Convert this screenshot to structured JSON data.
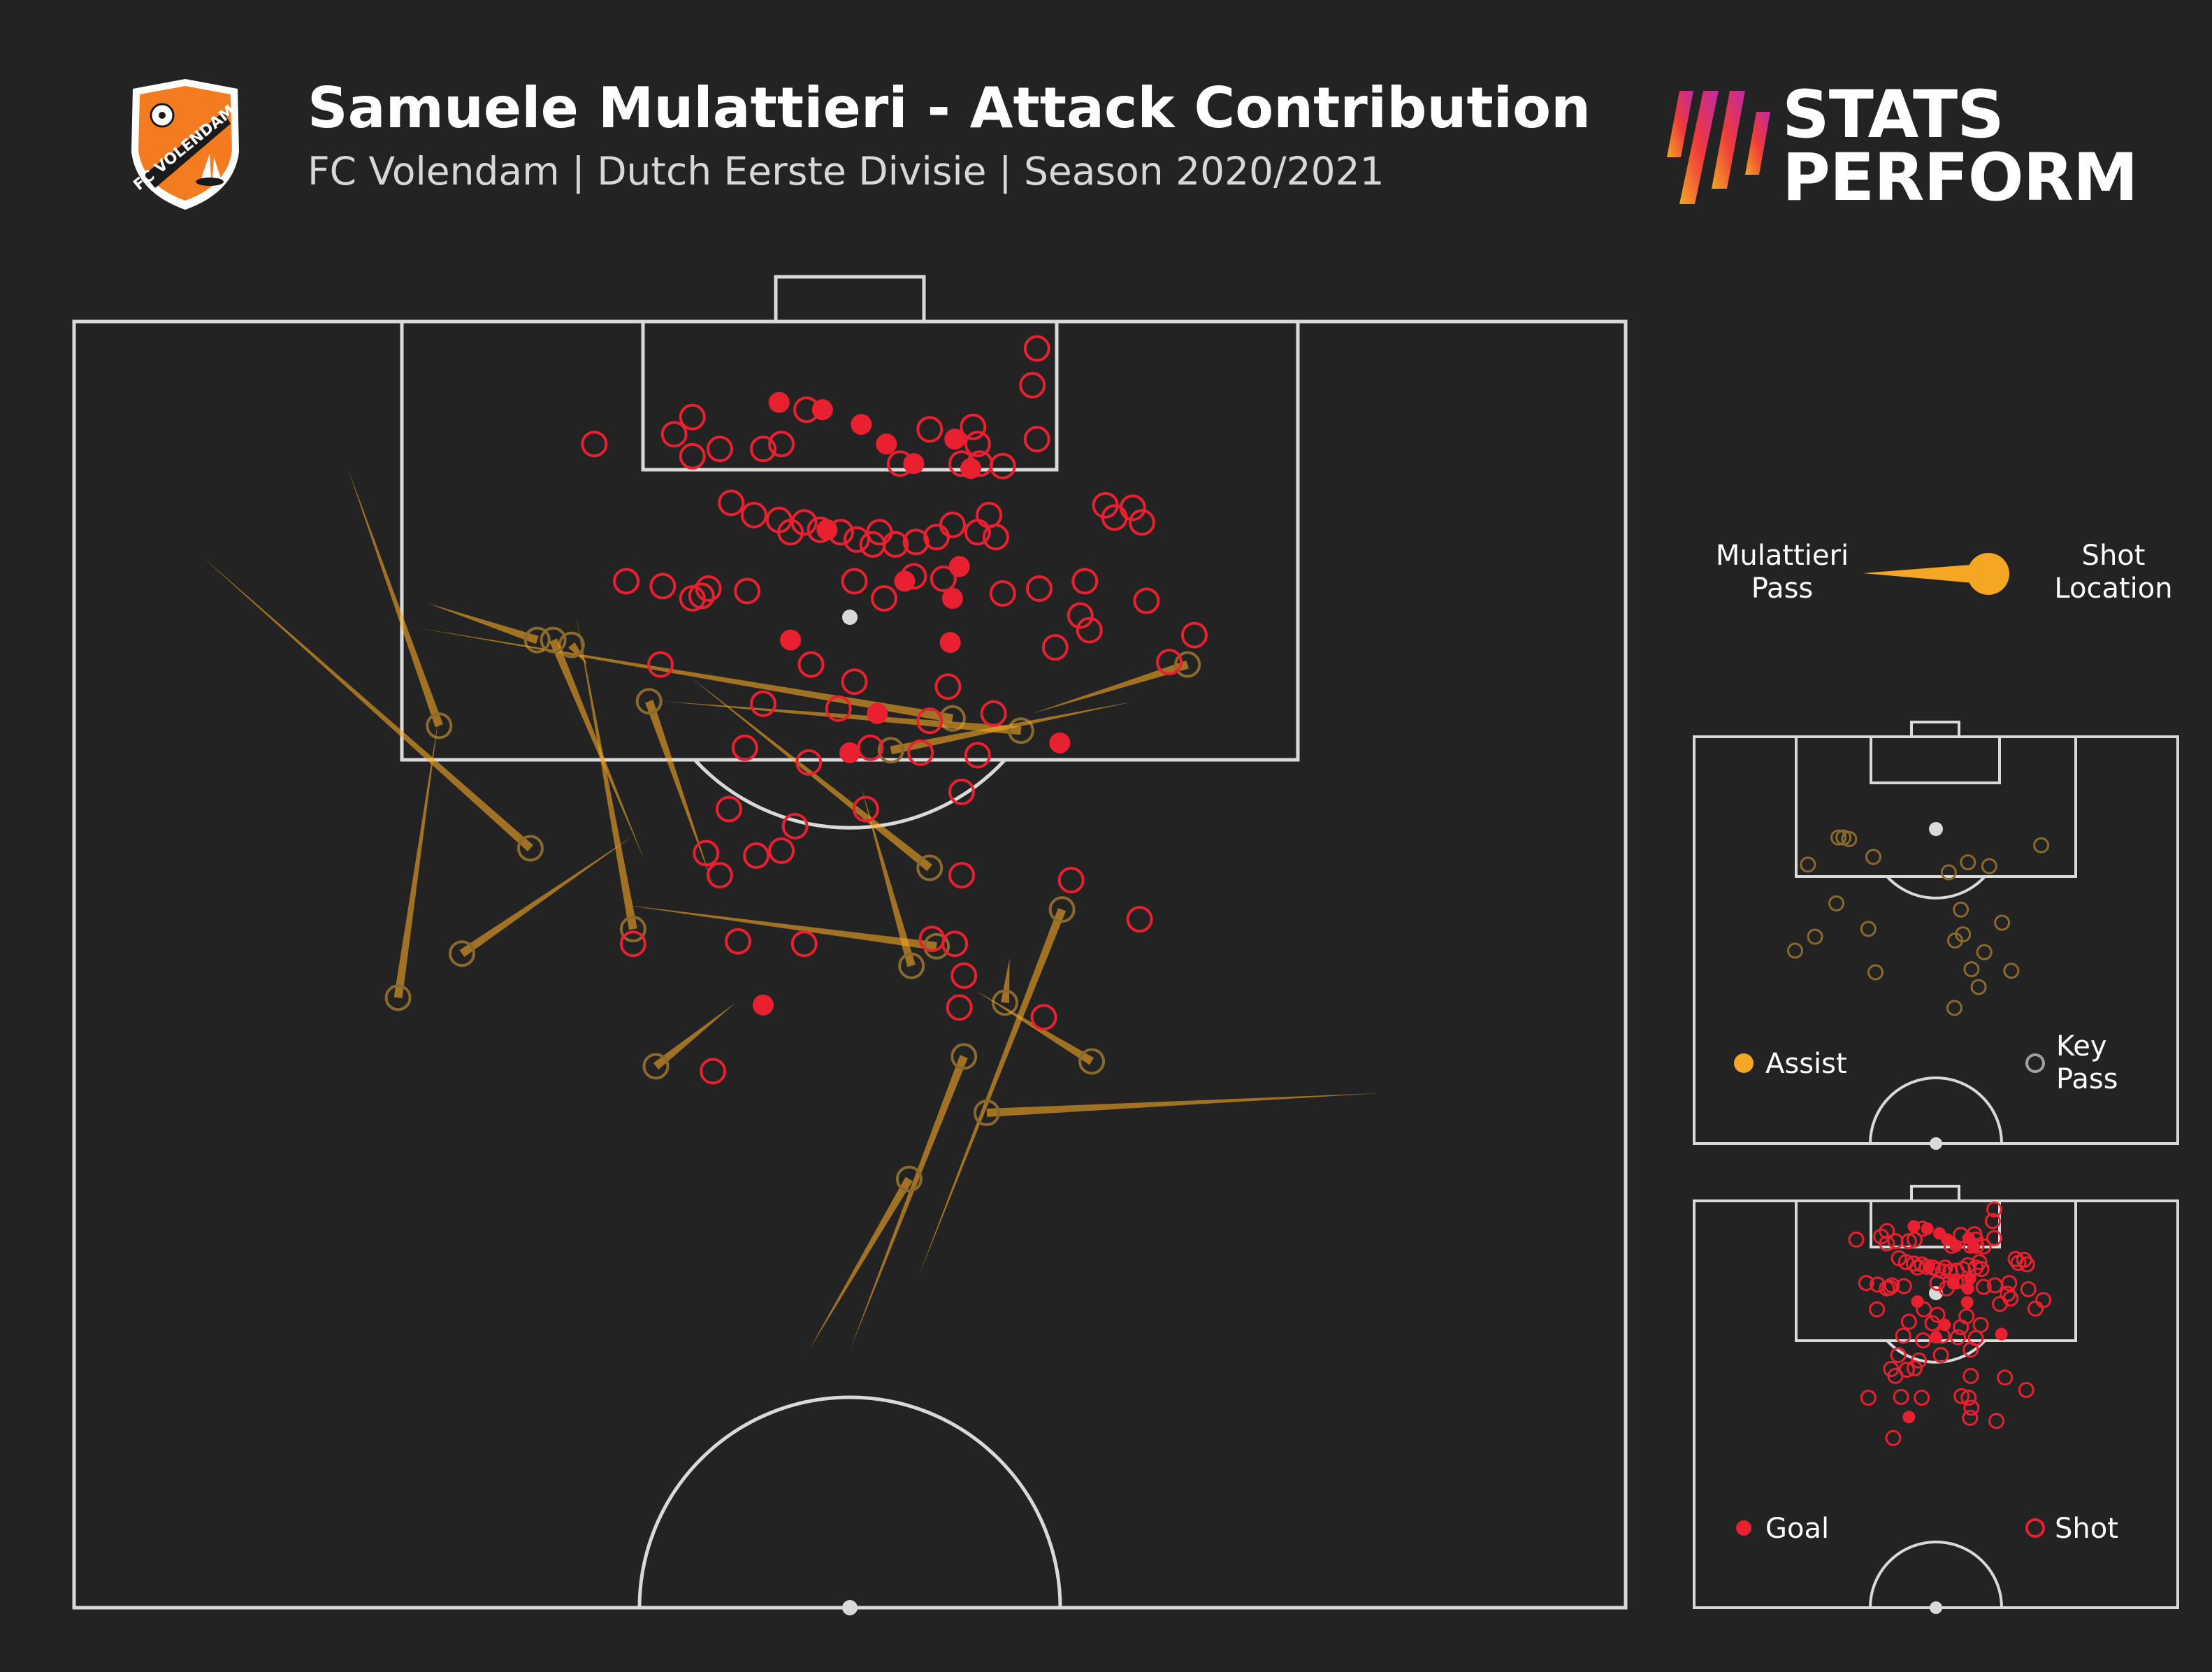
{
  "header": {
    "title": "Samuele Mulattieri - Attack Contribution",
    "subtitle": "FC Volendam | Dutch Eerste Divisie | Season 2020/2021",
    "crest_text": "FC VOLENDAM",
    "brand_line1": "STATS",
    "brand_line2": "PERFORM"
  },
  "legend": {
    "pass_label": [
      "Mulattieri",
      "Pass"
    ],
    "shot_label": [
      "Shot",
      "Location"
    ],
    "assist": "Assist",
    "key_pass": [
      "Key",
      "Pass"
    ],
    "goal": "Goal",
    "shot": "Shot"
  },
  "colors": {
    "background": "#232323",
    "pitch_lines": "#d9d9d9",
    "pass": "#f5a623",
    "goal": "#e8202f",
    "shot": "#e8202f",
    "key_pass": "#a0a0a0",
    "crest_orange": "#f47b20"
  },
  "chart_data": {
    "type": "scatter",
    "pitch_units": "x across pitch 0-68 (left to right), y distance from goal line",
    "main_pitch_y_range": [
      0,
      52.5
    ],
    "goals": [
      [
        30.9,
        3.3
      ],
      [
        32.8,
        3.6
      ],
      [
        34.5,
        4.2
      ],
      [
        35.6,
        5.0
      ],
      [
        36.8,
        5.8
      ],
      [
        38.6,
        4.8
      ],
      [
        39.3,
        6.0
      ],
      [
        33.0,
        8.5
      ],
      [
        36.4,
        10.6
      ],
      [
        38.5,
        11.3
      ],
      [
        38.8,
        10.0
      ],
      [
        31.4,
        13.0
      ],
      [
        38.4,
        13.1
      ],
      [
        35.2,
        16.0
      ],
      [
        34.0,
        17.6
      ],
      [
        43.2,
        17.2
      ],
      [
        30.2,
        27.9
      ]
    ],
    "shots": [
      [
        22.8,
        5.0
      ],
      [
        26.3,
        4.6
      ],
      [
        27.1,
        3.9
      ],
      [
        28.3,
        5.2
      ],
      [
        30.2,
        5.2
      ],
      [
        31.0,
        5.0
      ],
      [
        32.1,
        3.6
      ],
      [
        37.5,
        4.4
      ],
      [
        39.4,
        4.3
      ],
      [
        36.2,
        5.8
      ],
      [
        38.9,
        5.8
      ],
      [
        39.7,
        5.8
      ],
      [
        39.6,
        5.0
      ],
      [
        40.7,
        5.9
      ],
      [
        42.2,
        4.8
      ],
      [
        42.2,
        1.1
      ],
      [
        42.0,
        2.6
      ],
      [
        27.1,
        5.5
      ],
      [
        28.8,
        7.4
      ],
      [
        29.8,
        7.9
      ],
      [
        30.9,
        8.1
      ],
      [
        31.4,
        8.6
      ],
      [
        32.0,
        8.2
      ],
      [
        32.7,
        8.5
      ],
      [
        33.6,
        8.6
      ],
      [
        34.3,
        8.9
      ],
      [
        35.0,
        9.1
      ],
      [
        35.3,
        8.6
      ],
      [
        36.0,
        9.1
      ],
      [
        36.9,
        9.0
      ],
      [
        37.8,
        8.8
      ],
      [
        38.5,
        8.3
      ],
      [
        39.6,
        8.6
      ],
      [
        40.4,
        8.8
      ],
      [
        40.1,
        7.9
      ],
      [
        45.2,
        7.5
      ],
      [
        46.4,
        7.6
      ],
      [
        46.8,
        8.2
      ],
      [
        45.6,
        8.0
      ],
      [
        24.2,
        10.6
      ],
      [
        25.8,
        10.8
      ],
      [
        27.8,
        10.9
      ],
      [
        27.1,
        11.3
      ],
      [
        27.5,
        11.2
      ],
      [
        29.5,
        11.0
      ],
      [
        34.2,
        10.6
      ],
      [
        35.5,
        11.3
      ],
      [
        36.8,
        10.4
      ],
      [
        38.1,
        10.5
      ],
      [
        40.7,
        11.1
      ],
      [
        42.3,
        10.9
      ],
      [
        44.3,
        10.6
      ],
      [
        44.1,
        12.0
      ],
      [
        44.5,
        12.6
      ],
      [
        47.0,
        11.4
      ],
      [
        49.1,
        12.8
      ],
      [
        48.0,
        13.9
      ],
      [
        43.0,
        13.3
      ],
      [
        32.3,
        14.0
      ],
      [
        34.2,
        14.7
      ],
      [
        38.3,
        14.9
      ],
      [
        25.7,
        14.0
      ],
      [
        33.5,
        15.8
      ],
      [
        30.2,
        15.6
      ],
      [
        37.5,
        16.3
      ],
      [
        40.3,
        16.0
      ],
      [
        29.4,
        17.4
      ],
      [
        32.2,
        18.0
      ],
      [
        34.9,
        17.4
      ],
      [
        37.1,
        17.6
      ],
      [
        39.6,
        17.7
      ],
      [
        28.7,
        19.9
      ],
      [
        31.6,
        20.6
      ],
      [
        34.7,
        19.9
      ],
      [
        38.9,
        19.2
      ],
      [
        27.7,
        21.7
      ],
      [
        29.9,
        21.8
      ],
      [
        31.0,
        21.6
      ],
      [
        28.3,
        22.6
      ],
      [
        38.9,
        22.6
      ],
      [
        43.7,
        22.8
      ],
      [
        46.7,
        24.4
      ],
      [
        24.5,
        25.4
      ],
      [
        29.1,
        25.3
      ],
      [
        32.0,
        25.4
      ],
      [
        37.6,
        25.2
      ],
      [
        38.6,
        25.4
      ],
      [
        39.0,
        26.7
      ],
      [
        38.8,
        28.0
      ],
      [
        42.5,
        28.4
      ],
      [
        28.0,
        30.6
      ]
    ],
    "key_passes": [
      {
        "from": [
          12.0,
          6.0
        ],
        "to": [
          16.0,
          16.5
        ]
      },
      {
        "from": [
          5.5,
          9.5
        ],
        "to": [
          20.0,
          21.5
        ]
      },
      {
        "from": [
          15.5,
          11.5
        ],
        "to": [
          20.3,
          13.0
        ]
      },
      {
        "from": [
          15.0,
          12.5
        ],
        "to": [
          38.5,
          16.2
        ]
      },
      {
        "from": [
          27.0,
          14.5
        ],
        "to": [
          37.5,
          22.3
        ]
      },
      {
        "from": [
          22.0,
          12.0
        ],
        "to": [
          24.5,
          24.8
        ]
      },
      {
        "from": [
          22.5,
          14.0
        ],
        "to": [
          21.8,
          13.2
        ]
      },
      {
        "from": [
          25.0,
          22.0
        ],
        "to": [
          21.0,
          13.0
        ]
      },
      {
        "from": [
          24.5,
          21.0
        ],
        "to": [
          17.0,
          25.8
        ]
      },
      {
        "from": [
          24.0,
          23.8
        ],
        "to": [
          37.8,
          25.5
        ]
      },
      {
        "from": [
          28.0,
          23.0
        ],
        "to": [
          25.2,
          15.5
        ]
      },
      {
        "from": [
          16.0,
          16.0
        ],
        "to": [
          14.2,
          27.6
        ]
      },
      {
        "from": [
          25.8,
          15.5
        ],
        "to": [
          41.5,
          16.7
        ]
      },
      {
        "from": [
          46.5,
          15.5
        ],
        "to": [
          35.8,
          17.5
        ]
      },
      {
        "from": [
          42.0,
          16.0
        ],
        "to": [
          48.8,
          14.0
        ]
      },
      {
        "from": [
          34.5,
          19.0
        ],
        "to": [
          36.7,
          26.3
        ]
      },
      {
        "from": [
          41.0,
          26.0
        ],
        "to": [
          40.8,
          27.8
        ]
      },
      {
        "from": [
          29.0,
          27.8
        ],
        "to": [
          25.5,
          30.4
        ]
      },
      {
        "from": [
          39.5,
          27.3
        ],
        "to": [
          44.6,
          30.2
        ]
      },
      {
        "from": [
          34.0,
          42.0
        ],
        "to": [
          39.0,
          30.0
        ]
      },
      {
        "from": [
          37.0,
          39.0
        ],
        "to": [
          43.3,
          24.0
        ]
      },
      {
        "from": [
          32.2,
          42.0
        ],
        "to": [
          36.6,
          35.0
        ]
      },
      {
        "from": [
          57.2,
          31.5
        ],
        "to": [
          40.0,
          32.3
        ]
      }
    ],
    "xlabel": "",
    "ylabel": ""
  }
}
